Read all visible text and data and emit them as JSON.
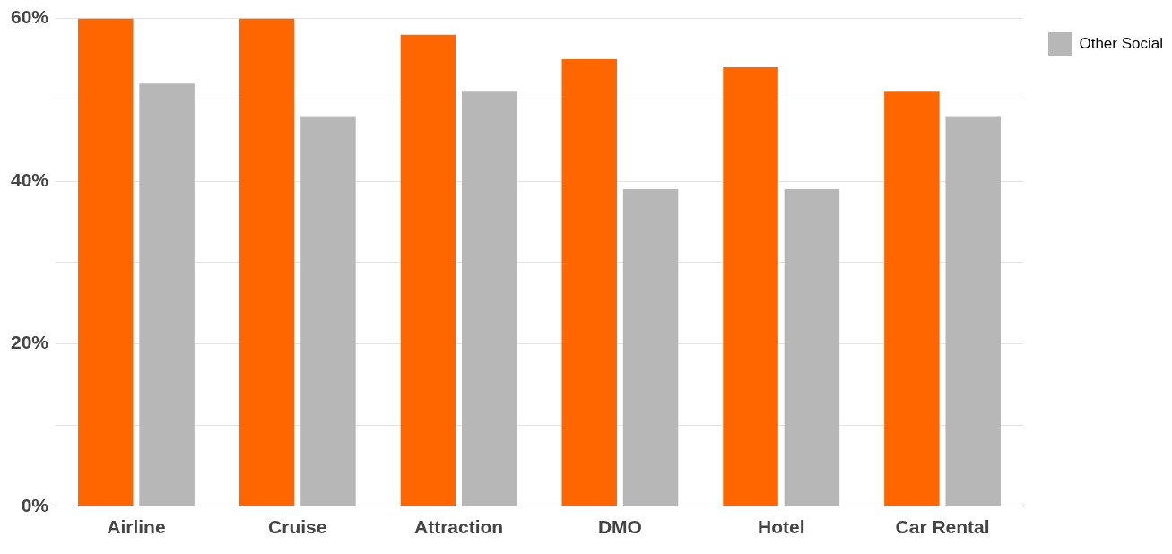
{
  "chart_data": {
    "type": "bar",
    "categories": [
      "Airline",
      "Cruise",
      "Attraction",
      "DMO",
      "Hotel",
      "Car Rental"
    ],
    "series": [
      {
        "color": "#ff6600",
        "values": [
          60,
          60,
          58,
          55,
          54,
          51
        ]
      },
      {
        "name": "Other Social",
        "color": "#b7b7b7",
        "values": [
          52,
          48,
          51,
          39,
          39,
          48
        ]
      }
    ],
    "ylim": [
      0,
      60
    ],
    "yticks": [
      {
        "value": 0,
        "label": "0%"
      },
      {
        "value": 10,
        "label": null
      },
      {
        "value": 20,
        "label": "20%"
      },
      {
        "value": 30,
        "label": null
      },
      {
        "value": 40,
        "label": "40%"
      },
      {
        "value": 50,
        "label": null
      },
      {
        "value": 60,
        "label": "60%"
      }
    ],
    "grid": "y",
    "legend": "top right"
  }
}
